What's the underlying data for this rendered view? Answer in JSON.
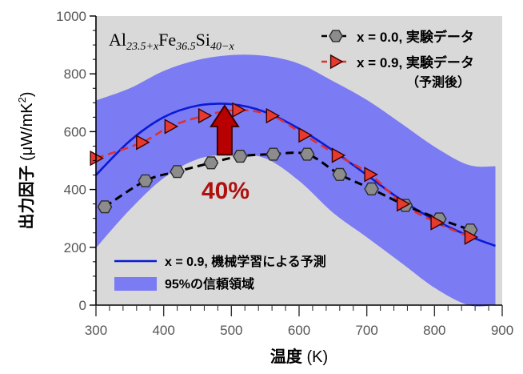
{
  "chart_data": {
    "type": "line",
    "title": "",
    "formula": {
      "parts": [
        {
          "text": "Al",
          "sub": false
        },
        {
          "text": "23.5+x",
          "sub": true
        },
        {
          "text": "Fe",
          "sub": false
        },
        {
          "text": "36.5",
          "sub": true
        },
        {
          "text": "Si",
          "sub": false
        },
        {
          "text": "40−x",
          "sub": true
        }
      ]
    },
    "xlabel": {
      "main": "温度",
      "unit": " (K)"
    },
    "ylabel": {
      "main": "出力因子 ",
      "unit": "(μW/mK",
      "sup": "2",
      "close": ")"
    },
    "xlim": [
      300,
      900
    ],
    "ylim": [
      0,
      1000
    ],
    "xticks": [
      300,
      400,
      500,
      600,
      700,
      800,
      900
    ],
    "yticks": [
      0,
      200,
      400,
      600,
      800,
      1000
    ],
    "grid": false,
    "legend_placement": "top-right and bottom-left",
    "colors": {
      "background": "#d9d9d9",
      "band": "#7b7bf3",
      "prediction": "#0a1ad6",
      "exp09": "#e63a2e",
      "exp09_line": "#e0302a",
      "exp00": "#8c8c8c",
      "arrow": "#b80000",
      "annotation": "#b01010"
    },
    "legend_top": [
      {
        "label": "x = 0.0, 実験データ",
        "sub": ""
      },
      {
        "label": "x = 0.9, 実験データ",
        "sub": "（予測後）"
      }
    ],
    "legend_bottom": [
      {
        "label": "x = 0.9, 機械学習による予測"
      },
      {
        "label": "95%の信頼領域"
      }
    ],
    "annotation": {
      "text": "40%",
      "from_x": 490,
      "from_y": 520,
      "to_y": 690
    },
    "series": [
      {
        "name": "x = 0.0, 実験データ",
        "style": "hexagon-dashed",
        "x": [
          313,
          373,
          420,
          470,
          513,
          562,
          612,
          660,
          707,
          757,
          807,
          853
        ],
        "y": [
          340,
          430,
          462,
          492,
          515,
          522,
          522,
          452,
          402,
          345,
          298,
          260
        ]
      },
      {
        "name": "x = 0.9, 実験データ",
        "style": "triangle-dashed",
        "x": [
          300,
          368,
          410,
          460,
          510,
          560,
          608,
          657,
          705,
          753,
          803,
          853
        ],
        "y": [
          508,
          563,
          618,
          655,
          675,
          655,
          588,
          518,
          452,
          350,
          285,
          235
        ]
      },
      {
        "name": "x = 0.9, 機械学習による予測",
        "style": "solid",
        "x": [
          300,
          350,
          400,
          450,
          500,
          550,
          600,
          650,
          700,
          750,
          800,
          850,
          890
        ],
        "y": [
          450,
          568,
          650,
          690,
          695,
          668,
          610,
          535,
          450,
          365,
          295,
          240,
          205
        ]
      },
      {
        "name": "95%の信頼領域",
        "style": "band",
        "x": [
          300,
          350,
          400,
          450,
          500,
          550,
          600,
          650,
          700,
          750,
          800,
          850,
          890
        ],
        "upper": [
          708,
          750,
          810,
          848,
          865,
          862,
          835,
          775,
          710,
          630,
          548,
          485,
          480
        ],
        "lower": [
          198,
          330,
          440,
          505,
          520,
          508,
          430,
          320,
          235,
          148,
          60,
          0,
          0
        ]
      }
    ]
  }
}
